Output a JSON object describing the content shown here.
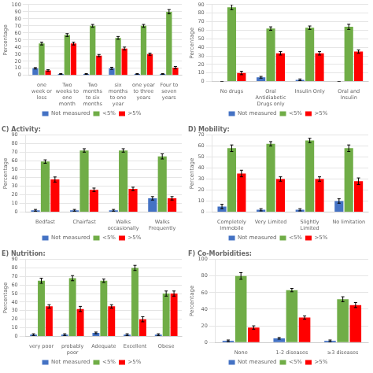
{
  "chart_data": [
    {
      "type": "bar",
      "categories": [
        "one\nweek or\nless",
        "Two\nweeks to\none\nmonth",
        "Two\nmonths\nto six\nmonths",
        "six\nmonths\nto one\nyear",
        "one year\nto three\nyears",
        "Four to\nseven\nyears"
      ],
      "series": [
        {
          "name": "Not measured",
          "color": "#4472C4",
          "values": [
            10,
            2,
            2,
            10,
            2,
            2
          ],
          "errors": [
            1,
            0.5,
            0.5,
            1.5,
            0.5,
            0.5
          ]
        },
        {
          "name": "<5%",
          "color": "#70AD47",
          "values": [
            45,
            57,
            70,
            53,
            70,
            90
          ],
          "errors": [
            2,
            2,
            2,
            2,
            2,
            3
          ]
        },
        {
          "name": ">5%",
          "color": "#FF0000",
          "values": [
            7,
            45,
            28,
            38,
            30,
            11
          ],
          "errors": [
            1,
            2,
            1.5,
            2,
            1.5,
            1.5
          ]
        }
      ],
      "y_label": "Percentage",
      "ylim": [
        0,
        100
      ],
      "yticks": [
        0,
        10,
        20,
        30,
        40,
        50,
        60,
        70,
        80,
        90,
        100
      ],
      "grid": true,
      "legend": "bottom"
    },
    {
      "type": "bar",
      "categories": [
        "No drugs",
        "Oral\nAntidiabetic\nDrugs only",
        "Insulin Only",
        "Oral and\nInsulin"
      ],
      "series": [
        {
          "name": "Not measured",
          "color": "#4472C4",
          "values": [
            0,
            5,
            2,
            0
          ],
          "errors": [
            0,
            1,
            1,
            0
          ]
        },
        {
          "name": "<5%",
          "color": "#70AD47",
          "values": [
            87,
            62,
            63,
            64
          ],
          "errors": [
            3,
            2,
            2,
            3
          ]
        },
        {
          "name": ">5%",
          "color": "#FF0000",
          "values": [
            10,
            33,
            33,
            35
          ],
          "errors": [
            2,
            2,
            2,
            2
          ]
        }
      ],
      "y_label": "Percentage",
      "ylim": [
        0,
        90
      ],
      "yticks": [
        0,
        10,
        20,
        30,
        40,
        50,
        60,
        70,
        80,
        90
      ],
      "grid": true,
      "legend": "bottom"
    },
    {
      "type": "bar",
      "title": "C) Activity:",
      "categories": [
        "Bedfast",
        "Chairfast",
        "Walks\noccasionally",
        "Walks\nFrequently"
      ],
      "series": [
        {
          "name": "Not measured",
          "color": "#4472C4",
          "values": [
            2,
            2,
            2,
            16
          ],
          "errors": [
            1,
            1,
            1,
            2
          ]
        },
        {
          "name": "<5%",
          "color": "#70AD47",
          "values": [
            59,
            72,
            72,
            65
          ],
          "errors": [
            2,
            2,
            2,
            3
          ]
        },
        {
          "name": ">5%",
          "color": "#FF0000",
          "values": [
            38,
            26,
            27,
            16
          ],
          "errors": [
            3,
            2,
            2,
            2
          ]
        }
      ],
      "y_label": "Percentage",
      "ylim": [
        0,
        90
      ],
      "yticks": [
        0,
        10,
        20,
        30,
        40,
        50,
        60,
        70,
        80,
        90
      ],
      "grid": true,
      "legend": "bottom"
    },
    {
      "type": "bar",
      "title": "D) Mobility:",
      "categories": [
        "Completely\nImmobile",
        "Very Limited",
        "Slightly\nLimited",
        "No limitation"
      ],
      "series": [
        {
          "name": "Not measured",
          "color": "#4472C4",
          "values": [
            5,
            2,
            2,
            10
          ],
          "errors": [
            2,
            1,
            1,
            2
          ]
        },
        {
          "name": "<5%",
          "color": "#70AD47",
          "values": [
            58,
            62,
            65,
            58
          ],
          "errors": [
            3,
            2,
            2,
            3
          ]
        },
        {
          "name": ">5%",
          "color": "#FF0000",
          "values": [
            35,
            30,
            30,
            28
          ],
          "errors": [
            3,
            2,
            2,
            3
          ]
        }
      ],
      "y_label": "Percentage",
      "ylim": [
        0,
        70
      ],
      "yticks": [
        0,
        10,
        20,
        30,
        40,
        50,
        60,
        70
      ],
      "grid": true,
      "legend": "bottom"
    },
    {
      "type": "bar",
      "title": "E) Nutrition:",
      "categories": [
        "very poor",
        "probably\npoor",
        "Adequate",
        "Excellent",
        "Obese"
      ],
      "series": [
        {
          "name": "Not measured",
          "color": "#4472C4",
          "values": [
            2,
            2,
            4,
            2,
            2
          ],
          "errors": [
            1,
            1,
            1,
            1,
            1
          ]
        },
        {
          "name": "<5%",
          "color": "#70AD47",
          "values": [
            65,
            68,
            65,
            80,
            50
          ],
          "errors": [
            3,
            3,
            2,
            3,
            3
          ]
        },
        {
          "name": ">5%",
          "color": "#FF0000",
          "values": [
            35,
            32,
            35,
            20,
            50
          ],
          "errors": [
            2,
            3,
            2,
            3,
            3
          ]
        }
      ],
      "y_label": "Percentage",
      "ylim": [
        0,
        90
      ],
      "yticks": [
        0,
        10,
        20,
        30,
        40,
        50,
        60,
        70,
        80,
        90
      ],
      "grid": true,
      "legend": "bottom"
    },
    {
      "type": "bar",
      "title": "F) Co-Morbidities:",
      "categories": [
        "None",
        "1-2 diseases",
        "≥3 diseases"
      ],
      "series": [
        {
          "name": "Not measured",
          "color": "#4472C4",
          "values": [
            2,
            5,
            2
          ],
          "errors": [
            1,
            1,
            1
          ]
        },
        {
          "name": "<5%",
          "color": "#70AD47",
          "values": [
            80,
            63,
            52
          ],
          "errors": [
            4,
            2,
            3
          ]
        },
        {
          "name": ">5%",
          "color": "#FF0000",
          "values": [
            18,
            30,
            45
          ],
          "errors": [
            2,
            2,
            3
          ]
        }
      ],
      "y_label": "Percentage",
      "ylim": [
        0,
        100
      ],
      "yticks": [
        0,
        20,
        40,
        60,
        80,
        100
      ],
      "grid": true,
      "legend": "bottom"
    }
  ]
}
